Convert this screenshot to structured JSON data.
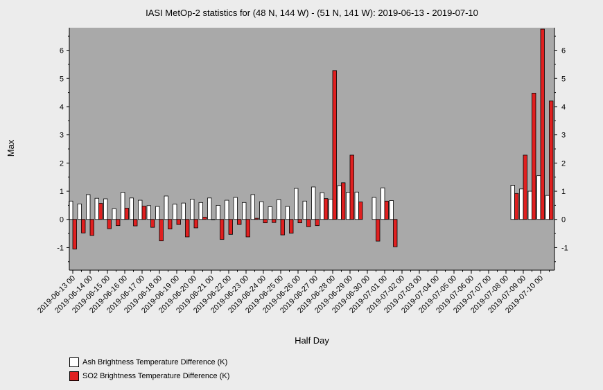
{
  "chart_data": {
    "type": "bar",
    "title": "IASI MetOp-2 statistics for (48 N, 144 W) - (51 N, 141 W): 2019-06-13 - 2019-07-10",
    "xlabel": "Half Day",
    "ylabel": "Max",
    "ylim": [
      -1.8,
      6.8
    ],
    "yticks": [
      -1,
      0,
      1,
      2,
      3,
      4,
      5,
      6
    ],
    "tick_labels": [
      "2019-06-13 00",
      "2019-06-14 00",
      "2019-06-15 00",
      "2019-06-16 00",
      "2019-06-17 00",
      "2019-06-18 00",
      "2019-06-19 00",
      "2019-06-20 00",
      "2019-06-21 00",
      "2019-06-22 00",
      "2019-06-23 00",
      "2019-06-24 00",
      "2019-06-25 00",
      "2019-06-26 00",
      "2019-06-27 00",
      "2019-06-28 00",
      "2019-06-29 00",
      "2019-06-30 00",
      "2019-07-01 00",
      "2019-07-02 00",
      "2019-07-03 00",
      "2019-07-04 00",
      "2019-07-05 00",
      "2019-07-06 00",
      "2019-07-07 00",
      "2019-07-08 00",
      "2019-07-09 00",
      "2019-07-10 00"
    ],
    "categories": [
      "2019-06-13 00",
      "2019-06-13 12",
      "2019-06-14 00",
      "2019-06-14 12",
      "2019-06-15 00",
      "2019-06-15 12",
      "2019-06-16 00",
      "2019-06-16 12",
      "2019-06-17 00",
      "2019-06-17 12",
      "2019-06-18 00",
      "2019-06-18 12",
      "2019-06-19 00",
      "2019-06-19 12",
      "2019-06-20 00",
      "2019-06-20 12",
      "2019-06-21 00",
      "2019-06-21 12",
      "2019-06-22 00",
      "2019-06-22 12",
      "2019-06-23 00",
      "2019-06-23 12",
      "2019-06-24 00",
      "2019-06-24 12",
      "2019-06-25 00",
      "2019-06-25 12",
      "2019-06-26 00",
      "2019-06-26 12",
      "2019-06-27 00",
      "2019-06-27 12",
      "2019-06-28 00",
      "2019-06-28 12",
      "2019-06-29 00",
      "2019-06-29 12",
      "2019-06-30 00",
      "2019-06-30 12",
      "2019-07-01 00",
      "2019-07-01 12",
      "2019-07-02 00",
      "2019-07-02 12",
      "2019-07-03 00",
      "2019-07-03 12",
      "2019-07-04 00",
      "2019-07-04 12",
      "2019-07-05 00",
      "2019-07-05 12",
      "2019-07-06 00",
      "2019-07-06 12",
      "2019-07-07 00",
      "2019-07-07 12",
      "2019-07-08 00",
      "2019-07-08 12",
      "2019-07-09 00",
      "2019-07-09 12",
      "2019-07-10 00",
      "2019-07-10 12"
    ],
    "series": [
      {
        "name": "Ash Brightness Temperature Difference (K)",
        "color": "#ffffff",
        "values": [
          0.65,
          0.55,
          0.88,
          0.75,
          0.73,
          0.38,
          0.96,
          0.76,
          0.68,
          0.49,
          0.46,
          0.83,
          0.54,
          0.58,
          0.72,
          0.6,
          0.76,
          0.5,
          0.68,
          0.78,
          0.6,
          0.88,
          0.63,
          0.45,
          0.7,
          0.46,
          1.1,
          0.65,
          1.15,
          0.95,
          0.72,
          1.2,
          0.96,
          0.97,
          null,
          0.78,
          1.12,
          0.67,
          null,
          null,
          null,
          null,
          null,
          null,
          null,
          null,
          null,
          null,
          null,
          null,
          null,
          1.21,
          1.08,
          1.0,
          1.55,
          0.85
        ]
      },
      {
        "name": "SO2 Brightness Temperature Difference (K)",
        "color": "#e02020",
        "values": [
          -1.05,
          -0.48,
          -0.57,
          0.57,
          -0.33,
          -0.22,
          0.4,
          -0.23,
          0.47,
          -0.28,
          -0.76,
          -0.34,
          -0.18,
          -0.62,
          -0.3,
          0.08,
          0.0,
          -0.71,
          -0.53,
          -0.18,
          -0.62,
          0.04,
          -0.12,
          -0.11,
          -0.55,
          -0.49,
          -0.12,
          -0.26,
          -0.22,
          0.74,
          5.28,
          1.3,
          2.28,
          0.62,
          null,
          -0.77,
          0.65,
          -0.97,
          null,
          null,
          null,
          null,
          null,
          null,
          null,
          null,
          null,
          null,
          null,
          null,
          null,
          0.92,
          2.28,
          4.48,
          6.75,
          4.2
        ]
      }
    ],
    "grid": false,
    "legend": "bottom-left"
  }
}
